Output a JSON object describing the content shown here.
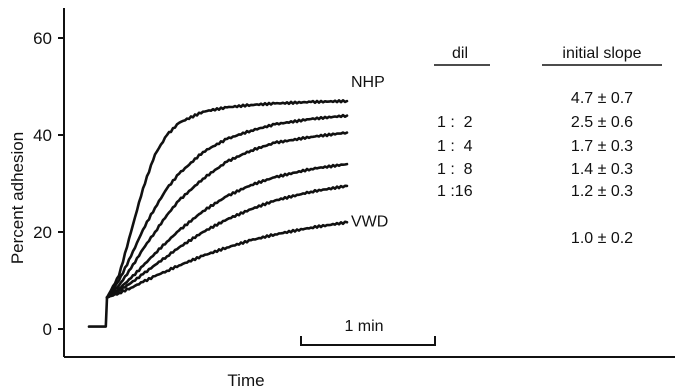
{
  "chart_data": {
    "type": "line",
    "title": "",
    "xlabel": "Time",
    "ylabel": "Percent adhesion",
    "ylim": [
      0,
      65
    ],
    "yticks": [
      0,
      20,
      40,
      60
    ],
    "ytick_labels": [
      "0",
      "20",
      "40",
      "60"
    ],
    "x_units": "min",
    "xlim": [
      -0.2,
      2.5
    ],
    "grid": false,
    "legend": "none",
    "scale_bar_label": "1 min",
    "scale_bar_value": 1,
    "series": [
      {
        "name": "NHP",
        "x": [
          -0.15,
          -0.01,
          0.0,
          0.1,
          0.2,
          0.3,
          0.4,
          0.5,
          0.6,
          0.8,
          1.0,
          1.2,
          1.4,
          1.7,
          2.0
        ],
        "y": [
          0.5,
          0.5,
          6.5,
          11,
          20,
          29,
          36,
          40,
          42.5,
          44.8,
          45.7,
          46.2,
          46.5,
          46.8,
          47
        ]
      },
      {
        "name": "1 : 2",
        "x": [
          0.0,
          0.1,
          0.2,
          0.3,
          0.4,
          0.5,
          0.6,
          0.8,
          1.0,
          1.2,
          1.4,
          1.7,
          2.0
        ],
        "y": [
          6.5,
          10,
          15,
          20.5,
          25,
          29,
          32,
          36.5,
          39.2,
          40.9,
          42.2,
          43.3,
          44
        ]
      },
      {
        "name": "1 : 4",
        "x": [
          0.0,
          0.1,
          0.2,
          0.3,
          0.4,
          0.5,
          0.6,
          0.8,
          1.0,
          1.2,
          1.4,
          1.7,
          2.0
        ],
        "y": [
          6.5,
          9,
          12.5,
          16.5,
          20,
          23.5,
          26.5,
          31,
          34.5,
          36.8,
          38.4,
          39.6,
          40.5
        ]
      },
      {
        "name": "1 : 8",
        "x": [
          0.0,
          0.1,
          0.2,
          0.3,
          0.4,
          0.5,
          0.6,
          0.8,
          1.0,
          1.2,
          1.4,
          1.7,
          2.0
        ],
        "y": [
          6.5,
          8.3,
          10.5,
          13,
          15.6,
          18,
          20.3,
          24.3,
          27.4,
          29.7,
          31.3,
          33,
          34
        ]
      },
      {
        "name": "1 :16",
        "x": [
          0.0,
          0.1,
          0.2,
          0.3,
          0.4,
          0.5,
          0.6,
          0.8,
          1.0,
          1.2,
          1.4,
          1.7,
          2.0
        ],
        "y": [
          6.5,
          7.9,
          9.5,
          11.3,
          13.2,
          15,
          16.8,
          20,
          22.6,
          24.7,
          26.5,
          28.3,
          29.5
        ]
      },
      {
        "name": "VWD",
        "x": [
          0.0,
          0.1,
          0.2,
          0.3,
          0.4,
          0.5,
          0.6,
          0.8,
          1.0,
          1.2,
          1.4,
          1.7,
          2.0
        ],
        "y": [
          6.5,
          7.4,
          8.5,
          9.7,
          10.9,
          12,
          13.1,
          15.1,
          16.8,
          18.3,
          19.5,
          20.9,
          22
        ]
      }
    ],
    "curve_labels": [
      {
        "text": "NHP",
        "series": 0
      },
      {
        "text": "VWD",
        "series": 5
      }
    ],
    "table": {
      "headers": [
        "dil",
        "initial slope"
      ],
      "rows": [
        [
          "",
          "4.7 ± 0.7"
        ],
        [
          "1 :  2",
          "2.5 ± 0.6"
        ],
        [
          "1 :  4",
          "1.7 ± 0.3"
        ],
        [
          "1 :  8",
          "1.4 ± 0.3"
        ],
        [
          "1 :16",
          "1.2 ± 0.3"
        ],
        [
          "",
          "1.0 ± 0.2"
        ]
      ]
    }
  }
}
